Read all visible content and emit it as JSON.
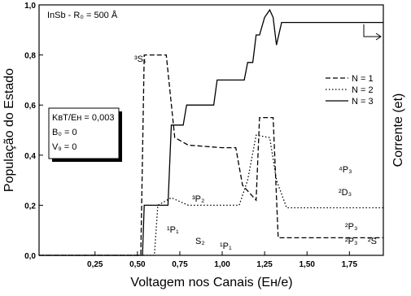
{
  "chart_data": {
    "type": "line",
    "title": "InSb - R₀ = 500 Å",
    "x_label": "Voltagem nos Canais (Eʜ/e)",
    "y_label": "População do Estado",
    "y2_label": "Corrente (et)",
    "info": [
      "KʙT/Eʜ = 0,003",
      "B₀ = 0",
      "V₉ = 0"
    ],
    "annotations": [
      "³S₁",
      "³P₂",
      "¹P₁",
      "S₂",
      "¹P₁",
      "⁴P₃",
      "²D₃",
      "²P₃",
      "²P₃",
      "²S"
    ],
    "xlim": [
      -0.08,
      1.95
    ],
    "ylim": [
      0,
      1
    ],
    "xticks": [
      {
        "value": 0.25,
        "label": "0,25"
      },
      {
        "value": 0.5,
        "label": "0,50"
      },
      {
        "value": 0.75,
        "label": "0,75"
      },
      {
        "value": 1.0,
        "label": "1,00"
      },
      {
        "value": 1.25,
        "label": "1,25"
      },
      {
        "value": 1.5,
        "label": "1,50"
      },
      {
        "value": 1.75,
        "label": "1,75"
      }
    ],
    "yticks": [
      {
        "value": 0,
        "label": "0,0"
      },
      {
        "value": 0.2,
        "label": "0,2"
      },
      {
        "value": 0.4,
        "label": "0,4"
      },
      {
        "value": 0.6,
        "label": "0,6"
      },
      {
        "value": 0.8,
        "label": "0,8"
      },
      {
        "value": 1.0,
        "label": "1,0"
      }
    ],
    "legend": "upper right",
    "series": [
      {
        "name": "N = 1",
        "color": "#000000",
        "dash": "6,3",
        "x": [
          -0.08,
          0.52,
          0.54,
          0.67,
          0.72,
          0.8,
          1.0,
          1.08,
          1.12,
          1.2,
          1.22,
          1.3,
          1.33,
          1.95
        ],
        "values": [
          0,
          0,
          0.8,
          0.8,
          0.47,
          0.44,
          0.43,
          0.43,
          0.28,
          0.22,
          0.55,
          0.55,
          0.07,
          0.07
        ]
      },
      {
        "name": "N = 2",
        "color": "#000000",
        "dash": "1.5,2.5",
        "x": [
          -0.08,
          0.6,
          0.62,
          0.7,
          0.8,
          1.1,
          1.15,
          1.2,
          1.28,
          1.32,
          1.38,
          1.95
        ],
        "values": [
          0,
          0,
          0.2,
          0.23,
          0.2,
          0.2,
          0.3,
          0.48,
          0.47,
          0.3,
          0.19,
          0.19
        ]
      },
      {
        "name": "N = 3",
        "color": "#000000",
        "dash": "",
        "x": [
          -0.08,
          0.53,
          0.54,
          0.68,
          0.7,
          0.77,
          0.79,
          0.95,
          0.97,
          1.13,
          1.15,
          1.18,
          1.2,
          1.22,
          1.25,
          1.28,
          1.3,
          1.32,
          1.35,
          1.95
        ],
        "values": [
          0,
          0,
          0.2,
          0.2,
          0.52,
          0.52,
          0.6,
          0.6,
          0.7,
          0.7,
          0.77,
          0.77,
          0.88,
          0.88,
          0.95,
          0.98,
          0.95,
          0.84,
          0.93,
          0.93
        ]
      }
    ]
  }
}
